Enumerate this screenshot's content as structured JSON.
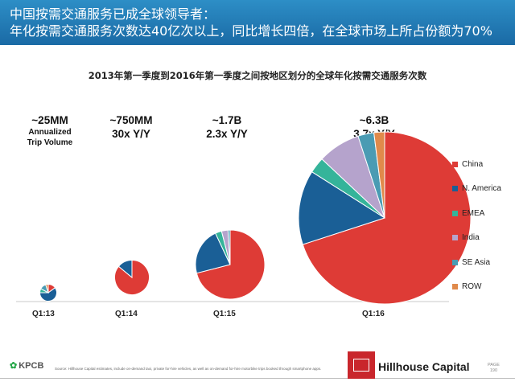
{
  "header": {
    "line1": "中国按需交通服务已成全球领导者：",
    "line2": "年化按需交通服务次数达40亿次以上，同比增长四倍，在全球市场上所占份额为70%"
  },
  "chart_data": {
    "type": "pie",
    "title": "2013年第一季度到2016年第一季度之间按地区划分的全球年化按需交通服务次数",
    "categories": [
      "China",
      "N. America",
      "EMEA",
      "India",
      "SE Asia",
      "ROW"
    ],
    "colors": [
      "#de3b36",
      "#1a5f96",
      "#35b49a",
      "#b5a3cc",
      "#4a9bb3",
      "#e08a4b"
    ],
    "pies": [
      {
        "period": "Q1:13",
        "annotation": [
          "~25MM",
          "Annualized",
          "Trip Volume"
        ],
        "shares": [
          15,
          60,
          8,
          0,
          12,
          5
        ]
      },
      {
        "period": "Q1:14",
        "annotation": [
          "~750MM",
          "30x Y/Y"
        ],
        "shares": [
          86,
          14,
          0,
          0,
          0,
          0
        ]
      },
      {
        "period": "Q1:15",
        "annotation": [
          "~1.7B",
          "2.3x Y/Y"
        ],
        "shares": [
          71,
          22,
          3,
          3,
          1,
          0
        ]
      },
      {
        "period": "Q1:16",
        "annotation": [
          "~6.3B",
          "3.7x Y/Y"
        ],
        "shares": [
          70,
          14,
          3,
          8,
          3,
          2
        ]
      }
    ]
  },
  "footer": {
    "source": "Source: Hillhouse Capital estimates, include on-demand taxi, private for-hire vehicles, as well as on-demand for-hire motorbike trips booked through smartphone apps.",
    "brand": "KPCB",
    "firm": "Hillhouse Capital",
    "logo_text": "HILLHOUSE CAPITAL",
    "page_label": "PAGE",
    "page_number": "190"
  }
}
